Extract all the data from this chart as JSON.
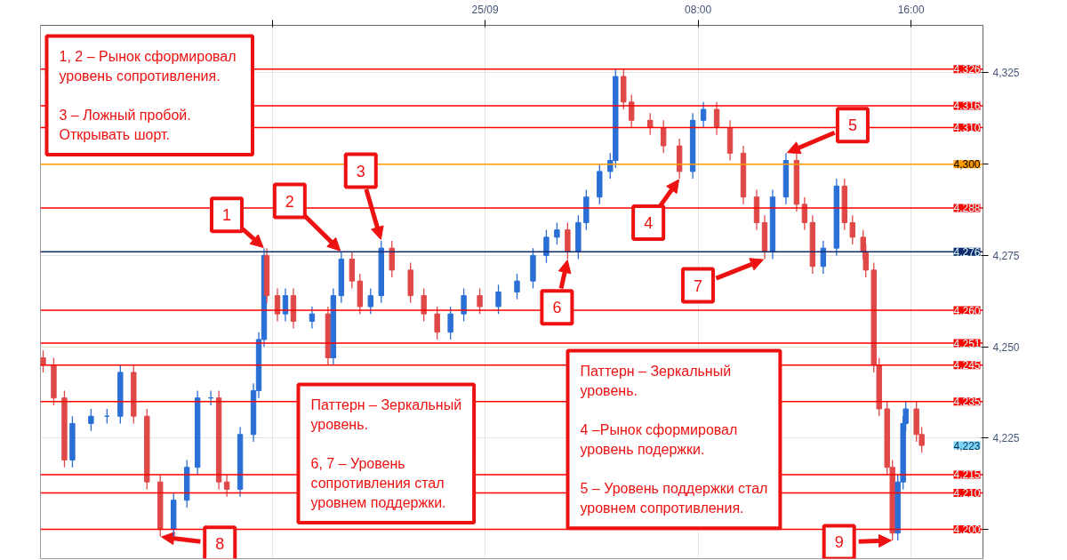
{
  "chart_data": {
    "type": "candlestick",
    "x": [
      -16.6,
      -16.2,
      -15.8,
      -15.5,
      -14.8,
      -14.2,
      -13.7,
      -13.2,
      -12.7,
      -12.2,
      -11.7,
      -11.2,
      -10.8,
      -10.3,
      -10.0,
      -9.7,
      -9.2,
      -8.7,
      -8.5,
      -8.3,
      -8.2,
      -7.8,
      -7.5,
      -7.2,
      -6.5,
      -5.9,
      -5.7,
      -5.4,
      -5.0,
      -4.7,
      -4.3,
      -3.9,
      -3.5,
      -2.8,
      -2.3,
      -1.8,
      -1.3,
      -0.8,
      -0.2,
      0.5,
      1.2,
      1.8,
      2.3,
      2.7,
      3.1,
      3.5,
      3.8,
      4.3,
      4.7,
      4.9,
      5.2,
      5.5,
      6.2,
      6.7,
      7.3,
      7.8,
      8.2,
      8.7,
      9.2,
      9.7,
      10.2,
      10.5,
      10.8,
      11.3,
      11.7,
      12.0,
      12.3,
      12.7,
      13.2,
      13.5,
      13.8,
      14.2,
      14.3,
      14.6,
      14.8,
      15.1,
      15.3,
      15.5,
      15.7,
      15.8,
      16.2,
      16.4
    ],
    "ohlc": [
      [
        4247,
        4249,
        4243,
        4245
      ],
      [
        4245,
        4247,
        4234,
        4236
      ],
      [
        4236,
        4238,
        4217,
        4219
      ],
      [
        4219,
        4231,
        4217,
        4229
      ],
      [
        4229,
        4233,
        4227,
        4231
      ],
      [
        4231,
        4233,
        4229,
        4231
      ],
      [
        4231,
        4245,
        4229,
        4243
      ],
      [
        4243,
        4245,
        4229,
        4231
      ],
      [
        4231,
        4233,
        4211,
        4213
      ],
      [
        4213,
        4215,
        4198,
        4200
      ],
      [
        4200,
        4210,
        4198,
        4208
      ],
      [
        4208,
        4219,
        4206,
        4217
      ],
      [
        4217,
        4238,
        4215,
        4236
      ],
      [
        4236,
        4238,
        4234,
        4236
      ],
      [
        4236,
        4238,
        4211,
        4213
      ],
      [
        4213,
        4215,
        4209,
        4211
      ],
      [
        4211,
        4228,
        4209,
        4226
      ],
      [
        4226,
        4240,
        4224,
        4238
      ],
      [
        4238,
        4254,
        4236,
        4252
      ],
      [
        4252,
        4277,
        4250,
        4275
      ],
      [
        4275,
        4277,
        4262,
        4264
      ],
      [
        4264,
        4266,
        4257,
        4259
      ],
      [
        4259,
        4266,
        4257,
        4264
      ],
      [
        4264,
        4266,
        4255,
        4257
      ],
      [
        4257,
        4261,
        4255,
        4259
      ],
      [
        4259,
        4261,
        4245,
        4247
      ],
      [
        4247,
        4266,
        4245,
        4264
      ],
      [
        4264,
        4276,
        4262,
        4274
      ],
      [
        4274,
        4276,
        4266,
        4268
      ],
      [
        4268,
        4270,
        4259,
        4261
      ],
      [
        4261,
        4266,
        4259,
        4264
      ],
      [
        4264,
        4279,
        4262,
        4277
      ],
      [
        4277,
        4279,
        4269,
        4271
      ],
      [
        4271,
        4273,
        4262,
        4264
      ],
      [
        4264,
        4266,
        4257,
        4259
      ],
      [
        4259,
        4261,
        4252,
        4254
      ],
      [
        4254,
        4261,
        4252,
        4259
      ],
      [
        4259,
        4266,
        4257,
        4264
      ],
      [
        4264,
        4266,
        4259,
        4261
      ],
      [
        4261,
        4267,
        4259,
        4265
      ],
      [
        4265,
        4270,
        4263,
        4268
      ],
      [
        4268,
        4277,
        4266,
        4275
      ],
      [
        4275,
        4282,
        4273,
        4280
      ],
      [
        4280,
        4284,
        4278,
        4282
      ],
      [
        4282,
        4284,
        4274,
        4276
      ],
      [
        4276,
        4286,
        4274,
        4284
      ],
      [
        4284,
        4293,
        4282,
        4291
      ],
      [
        4291,
        4300,
        4289,
        4298
      ],
      [
        4298,
        4303,
        4296,
        4301
      ],
      [
        4301,
        4326,
        4299,
        4324
      ],
      [
        4324,
        4326,
        4315,
        4317
      ],
      [
        4317,
        4319,
        4310,
        4312
      ],
      [
        4312,
        4314,
        4308,
        4310
      ],
      [
        4310,
        4312,
        4303,
        4305
      ],
      [
        4305,
        4307,
        4296,
        4298
      ],
      [
        4298,
        4314,
        4296,
        4312
      ],
      [
        4312,
        4317,
        4310,
        4315
      ],
      [
        4315,
        4317,
        4308,
        4310
      ],
      [
        4310,
        4312,
        4301,
        4303
      ],
      [
        4303,
        4305,
        4289,
        4291
      ],
      [
        4291,
        4293,
        4282,
        4284
      ],
      [
        4284,
        4286,
        4274,
        4276
      ],
      [
        4276,
        4293,
        4274,
        4291
      ],
      [
        4291,
        4303,
        4289,
        4301
      ],
      [
        4301,
        4303,
        4287,
        4289
      ],
      [
        4289,
        4291,
        4282,
        4284
      ],
      [
        4284,
        4286,
        4270,
        4272
      ],
      [
        4272,
        4279,
        4270,
        4277
      ],
      [
        4277,
        4296,
        4275,
        4294
      ],
      [
        4294,
        4296,
        4282,
        4284
      ],
      [
        4284,
        4286,
        4278,
        4280
      ],
      [
        4280,
        4282,
        4274,
        4276
      ],
      [
        4276,
        4278,
        4269,
        4271
      ],
      [
        4271,
        4273,
        4243,
        4245
      ],
      [
        4245,
        4247,
        4231,
        4233
      ],
      [
        4233,
        4235,
        4215,
        4217
      ],
      [
        4217,
        4219,
        4197,
        4199
      ],
      [
        4199,
        4215,
        4197,
        4213
      ],
      [
        4213,
        4231,
        4211,
        4229
      ],
      [
        4229,
        4235,
        4227,
        4233
      ],
      [
        4233,
        4235,
        4224,
        4226
      ],
      [
        4226,
        4228,
        4221,
        4223
      ]
    ],
    "xlim": [
      -16.7,
      18.7
    ],
    "xticks": [
      {
        "value": -8,
        "label": null
      },
      {
        "value": 0,
        "label": "25/09"
      },
      {
        "value": 8,
        "label": "08:00"
      },
      {
        "value": 16,
        "label": "16:00"
      }
    ],
    "ylim": [
      4192,
      4338
    ],
    "yticks": [
      {
        "value": 4200,
        "label": null
      },
      {
        "value": 4225,
        "label": "4,225"
      },
      {
        "value": 4250,
        "label": "4,250"
      },
      {
        "value": 4275,
        "label": "4,275"
      },
      {
        "value": 4300,
        "label": null
      },
      {
        "value": 4325,
        "label": "4,325"
      }
    ],
    "grid": true,
    "ref_lines": [
      {
        "axis": "y",
        "value": 4326,
        "label": "4,326",
        "color": "#ff0000"
      },
      {
        "axis": "y",
        "value": 4316,
        "label": "4,316",
        "color": "#ff0000"
      },
      {
        "axis": "y",
        "value": 4310,
        "label": "4,310",
        "color": "#ff0000"
      },
      {
        "axis": "y",
        "value": 4300,
        "label": "4,300",
        "color": "#ff9900"
      },
      {
        "axis": "y",
        "value": 4288,
        "label": "4,288",
        "color": "#ff0000"
      },
      {
        "axis": "y",
        "value": 4276,
        "label": "4,276",
        "color": "#102a6b"
      },
      {
        "axis": "y",
        "value": 4260,
        "label": "4,260",
        "color": "#ff0000"
      },
      {
        "axis": "y",
        "value": 4251,
        "label": "4,251",
        "color": "#ff0000"
      },
      {
        "axis": "y",
        "value": 4245,
        "label": "4,245",
        "color": "#ff0000"
      },
      {
        "axis": "y",
        "value": 4235,
        "label": "4,235",
        "color": "#ff0000"
      },
      {
        "axis": "y",
        "value": 4215,
        "label": "4,215",
        "color": "#ff0000"
      },
      {
        "axis": "y",
        "value": 4210,
        "label": "4,210",
        "color": "#ff0000"
      },
      {
        "axis": "y",
        "value": 4200,
        "label": "4,200",
        "color": "#ff0000"
      }
    ],
    "annotations": [
      "1, 2  – Рынок сформировал\nуровень сопротивления.\n\n3 – Ложный пробой.\nОткрывать шорт.",
      "Паттерн – Зеркальный\nуровень.\n\n6, 7  – Уровень\nсопротивления стал\nуровнем поддержки.",
      "Паттерн – Зеркальный\nуровень.\n\n4  –Рынок сформировал\nуровень подержки.\n\n5 – Уровень поддержки стал\nуровнем сопротивления.",
      {
        "text": "1",
        "x": -8.3,
        "y": 4277
      },
      {
        "text": "2",
        "x": -5.4,
        "y": 4276
      },
      {
        "text": "3",
        "x": -3.9,
        "y": 4279
      },
      {
        "text": "4",
        "x": 7.3,
        "y": 4296
      },
      {
        "text": "5",
        "x": 11.3,
        "y": 4303
      },
      {
        "text": "6",
        "x": 3.1,
        "y": 4274
      },
      {
        "text": "7",
        "x": 10.5,
        "y": 4274
      },
      {
        "text": "8",
        "x": -12.2,
        "y": 4198
      },
      {
        "text": "9",
        "x": 15.3,
        "y": 4197
      },
      {
        "text": "4,223",
        "x": 16.4,
        "y": 4223
      }
    ]
  }
}
